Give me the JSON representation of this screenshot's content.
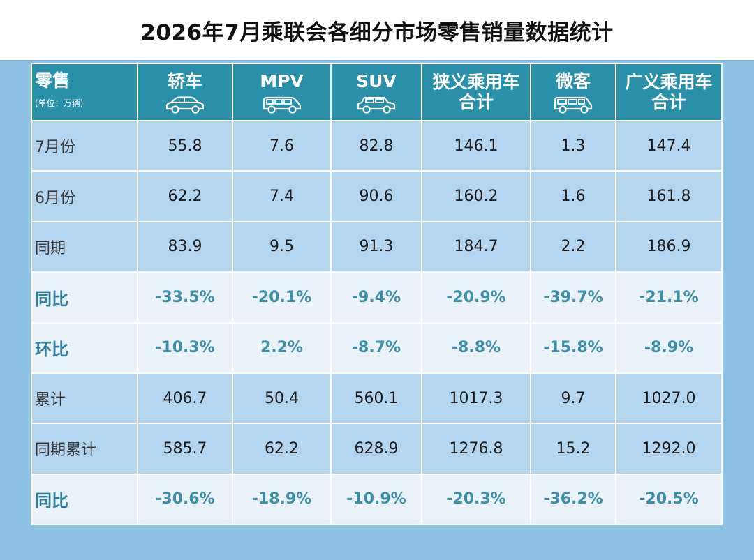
{
  "title": "2026年7月乘联会各细分市场零售销量数据统计",
  "header": {
    "corner_label": "零售",
    "corner_unit": "(单位：万辆)",
    "columns": [
      {
        "line1": "轿车",
        "line2": "",
        "icon": "sedan-icon"
      },
      {
        "line1": "MPV",
        "line2": "",
        "icon": "minivan-icon"
      },
      {
        "line1": "SUV",
        "line2": "",
        "icon": "suv-icon"
      },
      {
        "line1": "狭义乘用车",
        "line2": "合计",
        "icon": ""
      },
      {
        "line1": "微客",
        "line2": "",
        "icon": "microvan-icon"
      },
      {
        "line1": "广义乘用车",
        "line2": "合计",
        "icon": ""
      }
    ]
  },
  "rows": [
    {
      "label": "7月份",
      "type": "value",
      "cells": [
        "55.8",
        "7.6",
        "82.8",
        "146.1",
        "1.3",
        "147.4"
      ]
    },
    {
      "label": "6月份",
      "type": "value",
      "cells": [
        "62.2",
        "7.4",
        "90.6",
        "160.2",
        "1.6",
        "161.8"
      ]
    },
    {
      "label": "同期",
      "type": "value",
      "cells": [
        "83.9",
        "9.5",
        "91.3",
        "184.7",
        "2.2",
        "186.9"
      ]
    },
    {
      "label": "同比",
      "type": "pct",
      "cells": [
        "-33.5%",
        "-20.1%",
        "-9.4%",
        "-20.9%",
        "-39.7%",
        "-21.1%"
      ]
    },
    {
      "label": "环比",
      "type": "pct",
      "cells": [
        "-10.3%",
        "2.2%",
        "-8.7%",
        "-8.8%",
        "-15.8%",
        "-8.9%"
      ]
    },
    {
      "label": "累计",
      "type": "value",
      "cells": [
        "406.7",
        "50.4",
        "560.1",
        "1017.3",
        "9.7",
        "1027.0"
      ]
    },
    {
      "label": "同期累计",
      "type": "value",
      "cells": [
        "585.7",
        "62.2",
        "628.9",
        "1276.8",
        "15.2",
        "1292.0"
      ]
    },
    {
      "label": "同比",
      "type": "pct",
      "cells": [
        "-30.6%",
        "-18.9%",
        "-10.9%",
        "-20.3%",
        "-36.2%",
        "-20.5%"
      ]
    }
  ],
  "colors": {
    "header_bg": "#2a8fa8",
    "value_row_bg": "#b3d6ee",
    "pct_row_bg": "#e9f2f8",
    "pct_text": "#3c8fa6",
    "page_bg": "#8fc3e6"
  },
  "chart_data": {
    "type": "table",
    "title": "2026年7月乘联会各细分市场零售销量数据统计",
    "unit": "万辆",
    "columns": [
      "轿车",
      "MPV",
      "SUV",
      "狭义乘用车合计",
      "微客",
      "广义乘用车合计"
    ],
    "rows": [
      {
        "name": "7月份",
        "values": [
          55.8,
          7.6,
          82.8,
          146.1,
          1.3,
          147.4
        ]
      },
      {
        "name": "6月份",
        "values": [
          62.2,
          7.4,
          90.6,
          160.2,
          1.6,
          161.8
        ]
      },
      {
        "name": "同期",
        "values": [
          83.9,
          9.5,
          91.3,
          184.7,
          2.2,
          186.9
        ]
      },
      {
        "name": "同比",
        "values": [
          "-33.5%",
          "-20.1%",
          "-9.4%",
          "-20.9%",
          "-39.7%",
          "-21.1%"
        ]
      },
      {
        "name": "环比",
        "values": [
          "-10.3%",
          "2.2%",
          "-8.7%",
          "-8.8%",
          "-15.8%",
          "-8.9%"
        ]
      },
      {
        "name": "累计",
        "values": [
          406.7,
          50.4,
          560.1,
          1017.3,
          9.7,
          1027.0
        ]
      },
      {
        "name": "同期累计",
        "values": [
          585.7,
          62.2,
          628.9,
          1276.8,
          15.2,
          1292.0
        ]
      },
      {
        "name": "同比",
        "values": [
          "-30.6%",
          "-18.9%",
          "-10.9%",
          "-20.3%",
          "-36.2%",
          "-20.5%"
        ]
      }
    ]
  }
}
